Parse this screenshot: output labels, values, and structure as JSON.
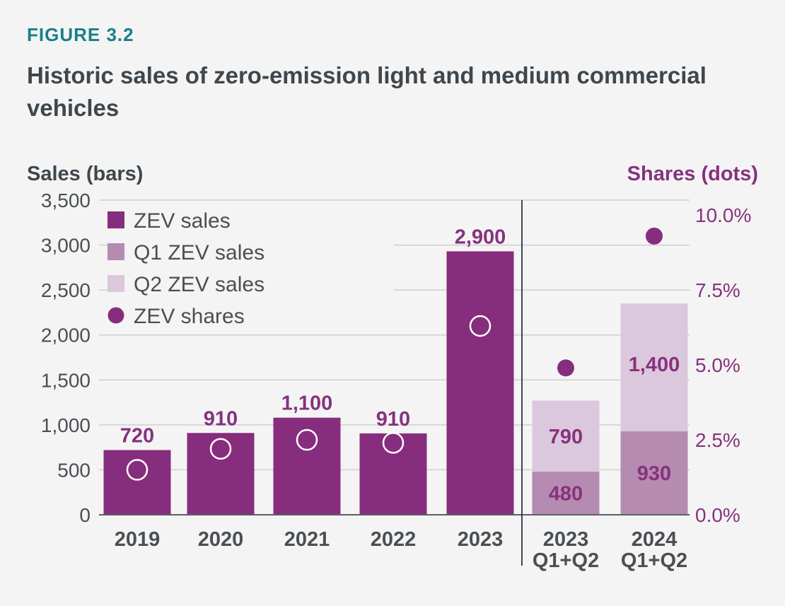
{
  "figure_label": "FIGURE 3.2",
  "title": "Historic sales of zero-emission light and medium commercial vehicles",
  "colors": {
    "zev_sales": "#872d7d",
    "q1_sales": "#b58bb2",
    "q2_sales": "#dcc8dc",
    "zev_shares": "#872d7d",
    "text": "#4a4f54",
    "grid": "#cfcfcf"
  },
  "chart_data": {
    "type": "bar",
    "left_axis": {
      "title": "Sales (bars)",
      "range": [
        0,
        3500
      ],
      "ticks": [
        "0",
        "500",
        "1,000",
        "1,500",
        "2,000",
        "2,500",
        "3,000",
        "3,500"
      ]
    },
    "right_axis": {
      "title": "Shares (dots)",
      "range": [
        0,
        0.105
      ],
      "ticks": [
        "0.0%",
        "2.5%",
        "5.0%",
        "7.5%",
        "10.0%"
      ]
    },
    "legend": [
      {
        "label": "ZEV sales",
        "shape": "square",
        "color_key": "zev_sales"
      },
      {
        "label": "Q1 ZEV sales",
        "shape": "square",
        "color_key": "q1_sales"
      },
      {
        "label": "Q2 ZEV sales",
        "shape": "square",
        "color_key": "q2_sales"
      },
      {
        "label": "ZEV shares",
        "shape": "circle",
        "color_key": "zev_shares"
      }
    ],
    "annual": {
      "categories": [
        "2019",
        "2020",
        "2021",
        "2022",
        "2023"
      ],
      "sales": [
        720,
        910,
        1080,
        905,
        2930
      ],
      "sales_labels": [
        "720",
        "910",
        "1,100",
        "910",
        "2,900"
      ],
      "shares": [
        0.015,
        0.022,
        0.025,
        0.024,
        0.063
      ]
    },
    "half_year": {
      "categories": [
        [
          "2023",
          "Q1+Q2"
        ],
        [
          "2024",
          "Q1+Q2"
        ]
      ],
      "q1_sales": [
        480,
        930
      ],
      "q2_sales": [
        790,
        1420
      ],
      "q1_labels": [
        "480",
        "930"
      ],
      "q2_labels": [
        "790",
        "1,400"
      ],
      "shares": [
        0.049,
        0.093
      ]
    },
    "grid": true
  }
}
